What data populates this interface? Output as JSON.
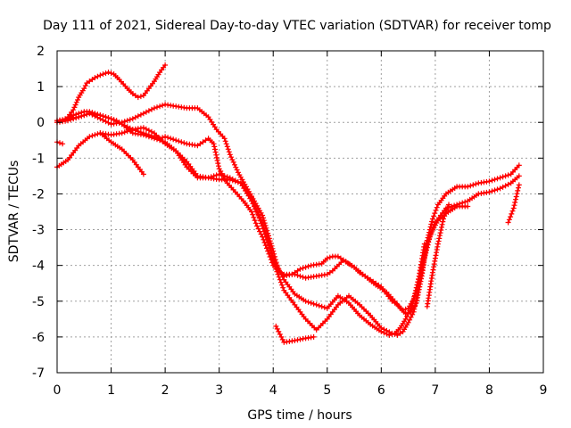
{
  "chart_data": {
    "type": "scatter",
    "title": "Day 111 of 2021, Sidereal Day-to-day VTEC variation (SDTVAR) for receiver tomp",
    "xlabel": "GPS time / hours",
    "ylabel": "SDTVAR / TECUs",
    "xlim": [
      0,
      9
    ],
    "ylim": [
      -7,
      2
    ],
    "xticks": [
      "0",
      "1",
      "2",
      "3",
      "4",
      "5",
      "6",
      "7",
      "8",
      "9"
    ],
    "yticks": [
      "2",
      "1",
      "0",
      "-1",
      "-2",
      "-3",
      "-4",
      "-5",
      "-6",
      "-7"
    ],
    "grid": true,
    "marker": "+",
    "color": "#ff0000",
    "series": [
      {
        "name": "track-1",
        "x": [
          0.0,
          0.1,
          0.2,
          0.3,
          0.4,
          0.5,
          0.55,
          0.7,
          0.85,
          0.95,
          1.05,
          1.15,
          1.3,
          1.4,
          1.5,
          1.6,
          1.7,
          1.8,
          1.9,
          2.0
        ],
        "y": [
          0.05,
          0.05,
          0.15,
          0.35,
          0.7,
          0.95,
          1.1,
          1.25,
          1.35,
          1.4,
          1.35,
          1.2,
          0.95,
          0.8,
          0.7,
          0.75,
          0.95,
          1.15,
          1.4,
          1.6
        ]
      },
      {
        "name": "track-2",
        "x": [
          0.0,
          0.1,
          0.2,
          0.3,
          0.4,
          0.5,
          0.6,
          0.7,
          0.8,
          0.9,
          1.0,
          1.1,
          1.2,
          1.4,
          1.6,
          1.8,
          1.9,
          2.0,
          2.2,
          2.4,
          2.6,
          2.7,
          2.8,
          2.9,
          3.0,
          3.15,
          3.3,
          3.45,
          3.6,
          3.7,
          3.8,
          3.9,
          4.0,
          4.1,
          4.2,
          4.4,
          4.6,
          4.8,
          5.0,
          5.1,
          5.3,
          5.5,
          5.7,
          5.9,
          6.1,
          6.25,
          6.35,
          6.45,
          6.55,
          6.65,
          6.75,
          6.85,
          6.95,
          7.05,
          7.2,
          7.4,
          7.6,
          7.8,
          8.0,
          8.2,
          8.4,
          8.55
        ],
        "y": [
          0.0,
          0.05,
          0.1,
          0.2,
          0.25,
          0.3,
          0.3,
          0.25,
          0.2,
          0.15,
          0.1,
          0.05,
          -0.05,
          -0.2,
          -0.3,
          -0.4,
          -0.45,
          -0.4,
          -0.5,
          -0.6,
          -0.65,
          -0.55,
          -0.45,
          -0.6,
          -1.3,
          -1.7,
          -1.95,
          -2.2,
          -2.5,
          -2.9,
          -3.2,
          -3.6,
          -4.0,
          -4.15,
          -4.25,
          -4.25,
          -4.35,
          -4.3,
          -4.25,
          -4.15,
          -3.85,
          -4.05,
          -4.3,
          -4.55,
          -4.75,
          -5.0,
          -5.2,
          -5.35,
          -5.3,
          -5.05,
          -4.3,
          -3.3,
          -2.7,
          -2.3,
          -2.0,
          -1.8,
          -1.8,
          -1.7,
          -1.65,
          -1.55,
          -1.45,
          -1.2
        ]
      },
      {
        "name": "track-3",
        "x": [
          0.0,
          0.2,
          0.4,
          0.6,
          0.8,
          1.0,
          1.2,
          1.4,
          1.6,
          1.8,
          2.0,
          2.2,
          2.4,
          2.6,
          2.8,
          3.0,
          3.2,
          3.4,
          3.6,
          3.8,
          4.0,
          4.2,
          4.4,
          4.6,
          4.8,
          5.0,
          5.2,
          5.4,
          5.6,
          5.8,
          6.0,
          6.15,
          6.25,
          6.35,
          6.45,
          6.55,
          6.65,
          6.75,
          6.85,
          6.95,
          7.05,
          7.2,
          7.4,
          7.6
        ],
        "y": [
          -1.25,
          -1.05,
          -0.65,
          -0.4,
          -0.3,
          -0.35,
          -0.3,
          -0.2,
          -0.15,
          -0.3,
          -0.6,
          -0.8,
          -1.1,
          -1.5,
          -1.55,
          -1.6,
          -1.6,
          -1.7,
          -2.2,
          -2.8,
          -3.8,
          -4.4,
          -4.8,
          -5.0,
          -5.1,
          -5.2,
          -4.85,
          -5.05,
          -5.4,
          -5.65,
          -5.85,
          -5.95,
          -5.9,
          -5.75,
          -5.5,
          -5.2,
          -4.7,
          -4.0,
          -3.4,
          -3.0,
          -2.75,
          -2.55,
          -2.35,
          -2.35
        ]
      },
      {
        "name": "track-4",
        "x": [
          0.0,
          0.2,
          0.4,
          0.6,
          0.8,
          1.0,
          1.2,
          1.4,
          1.6,
          1.8,
          2.0,
          2.2,
          2.4,
          2.6,
          2.8,
          3.0,
          3.2,
          3.4,
          3.6,
          3.8,
          3.95,
          4.05,
          4.2,
          4.4,
          4.6,
          4.8,
          5.0,
          5.2,
          5.4,
          5.6,
          5.8,
          6.0,
          6.2,
          6.3,
          6.4,
          6.5,
          6.6,
          6.7,
          6.8,
          6.9,
          7.0,
          7.2,
          7.4,
          7.6,
          7.8,
          8.0,
          8.2,
          8.4,
          8.55
        ],
        "y": [
          0.05,
          0.1,
          0.15,
          0.25,
          0.2,
          0.1,
          -0.05,
          -0.3,
          -0.35,
          -0.45,
          -0.55,
          -0.8,
          -1.25,
          -1.55,
          -1.55,
          -1.45,
          -1.55,
          -1.7,
          -2.1,
          -2.9,
          -3.6,
          -4.1,
          -4.7,
          -5.1,
          -5.5,
          -5.8,
          -5.5,
          -5.1,
          -4.85,
          -5.1,
          -5.4,
          -5.75,
          -5.9,
          -5.95,
          -5.85,
          -5.6,
          -5.3,
          -4.6,
          -3.8,
          -3.2,
          -2.8,
          -2.4,
          -2.3,
          -2.2,
          -2.0,
          -1.95,
          -1.85,
          -1.7,
          -1.5
        ]
      },
      {
        "name": "track-5",
        "x": [
          0.0,
          0.2,
          0.4,
          0.6,
          0.8,
          1.0,
          1.2,
          1.4,
          1.6,
          1.8,
          2.0,
          2.2,
          2.4,
          2.6,
          2.8,
          2.95,
          3.1,
          3.2,
          3.35,
          3.5,
          3.65,
          3.8,
          3.9,
          4.0,
          4.1,
          4.2,
          4.35,
          4.5,
          4.7,
          4.9,
          5.0,
          5.1,
          5.2,
          5.35,
          5.5,
          5.6,
          5.7,
          5.85,
          6.0,
          6.1,
          6.2,
          6.3,
          6.4,
          6.5,
          6.6,
          6.7,
          6.8
        ],
        "y": [
          0.0,
          0.05,
          0.15,
          0.25,
          0.1,
          -0.05,
          0.0,
          0.1,
          0.25,
          0.4,
          0.5,
          0.45,
          0.4,
          0.4,
          0.15,
          -0.2,
          -0.45,
          -0.9,
          -1.4,
          -1.8,
          -2.2,
          -2.6,
          -3.1,
          -3.6,
          -4.15,
          -4.3,
          -4.25,
          -4.1,
          -4.0,
          -3.95,
          -3.8,
          -3.75,
          -3.75,
          -3.9,
          -4.05,
          -4.2,
          -4.3,
          -4.45,
          -4.6,
          -4.8,
          -5.0,
          -5.1,
          -5.25,
          -5.2,
          -4.95,
          -4.3,
          -3.4
        ]
      },
      {
        "name": "track-6",
        "x": [
          0.8,
          1.0,
          1.2,
          1.4,
          1.6
        ],
        "y": [
          -0.3,
          -0.55,
          -0.75,
          -1.05,
          -1.45
        ]
      },
      {
        "name": "track-7",
        "x": [
          0.0,
          0.1
        ],
        "y": [
          -0.55,
          -0.6
        ]
      },
      {
        "name": "track-8",
        "x": [
          8.35,
          8.45,
          8.55
        ],
        "y": [
          -2.8,
          -2.4,
          -1.75
        ]
      },
      {
        "name": "track-9",
        "x": [
          4.05,
          4.2,
          4.4,
          4.55,
          4.75
        ],
        "y": [
          -5.7,
          -6.15,
          -6.1,
          -6.05,
          -6.0
        ]
      },
      {
        "name": "track-10",
        "x": [
          6.85,
          6.95,
          7.05,
          7.15,
          7.25
        ],
        "y": [
          -5.15,
          -4.2,
          -3.4,
          -2.7,
          -2.3
        ]
      }
    ]
  }
}
